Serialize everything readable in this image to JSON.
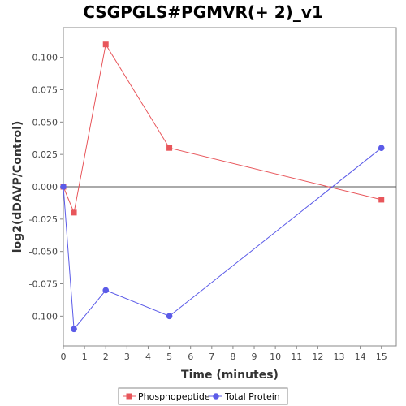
{
  "chart_data": {
    "type": "line",
    "title": "CSGPGLS#PGMVR(+ 2)_v1",
    "xlabel": "Time (minutes)",
    "ylabel": "log2(dDAVP/Control)",
    "xlim": [
      0,
      15.7
    ],
    "ylim": [
      -0.123,
      0.123
    ],
    "x_ticks": [
      0,
      1,
      2,
      3,
      4,
      5,
      6,
      7,
      8,
      9,
      10,
      11,
      12,
      13,
      14,
      15
    ],
    "x_tick_labels": [
      "0",
      "1",
      "2",
      "3",
      "4",
      "5",
      "6",
      "7",
      "8",
      "9",
      "10",
      "11",
      "12",
      "13",
      "14",
      "15"
    ],
    "y_ticks": [
      0.1,
      0.075,
      0.05,
      0.025,
      0,
      -0.025,
      -0.05,
      -0.075,
      -0.1
    ],
    "y_tick_labels": [
      "0.100",
      "0.075",
      "0.050",
      "0.025",
      "0.000",
      "-0.025",
      "-0.050",
      "-0.075",
      "-0.100"
    ],
    "zero_line": true,
    "grid": false,
    "legend_position": "bottom",
    "series": [
      {
        "name": "Phosphopeptide",
        "color": "#e8565b",
        "marker": "square",
        "x": [
          0,
          0.5,
          2,
          5,
          15
        ],
        "y": [
          0,
          -0.02,
          0.11,
          0.03,
          -0.01
        ]
      },
      {
        "name": "Total Protein",
        "color": "#5b5be8",
        "marker": "circle",
        "x": [
          0,
          0.5,
          2,
          5,
          15
        ],
        "y": [
          0,
          -0.11,
          -0.08,
          -0.1,
          0.03
        ]
      }
    ]
  }
}
